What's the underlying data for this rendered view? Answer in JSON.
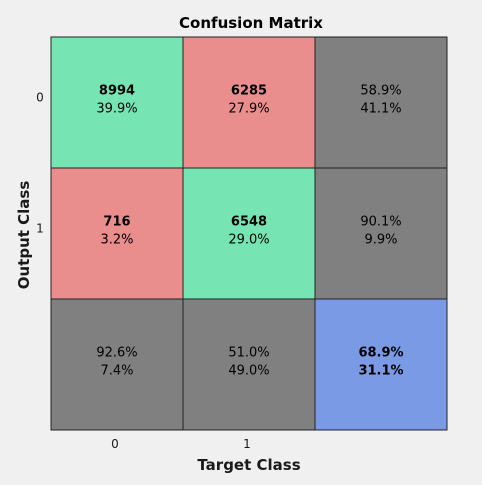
{
  "chart_data": {
    "type": "heatmap",
    "title": "Confusion Matrix",
    "xlabel": "Target Class",
    "ylabel": "Output Class",
    "x_ticks": [
      "0",
      "1"
    ],
    "y_ticks": [
      "0",
      "1"
    ],
    "cells": [
      [
        {
          "count": "8994",
          "percent": "39.9%"
        },
        {
          "count": "6285",
          "percent": "27.9%"
        }
      ],
      [
        {
          "count": "716",
          "percent": "3.2%"
        },
        {
          "count": "6548",
          "percent": "29.0%"
        }
      ]
    ],
    "row_summary": [
      {
        "correct": "58.9%",
        "incorrect": "41.1%"
      },
      {
        "correct": "90.1%",
        "incorrect": "9.9%"
      }
    ],
    "col_summary": [
      {
        "correct": "92.6%",
        "incorrect": "7.4%"
      },
      {
        "correct": "51.0%",
        "incorrect": "49.0%"
      }
    ],
    "overall": {
      "correct": "68.9%",
      "incorrect": "31.1%"
    },
    "colors": {
      "correct_cell": "#77e5b3",
      "incorrect_cell": "#e98d8d",
      "summary_cell": "#808080",
      "overall_cell": "#7b9ae6",
      "correct_text": "#0b6b0b",
      "incorrect_text": "#6b0b0b"
    }
  }
}
